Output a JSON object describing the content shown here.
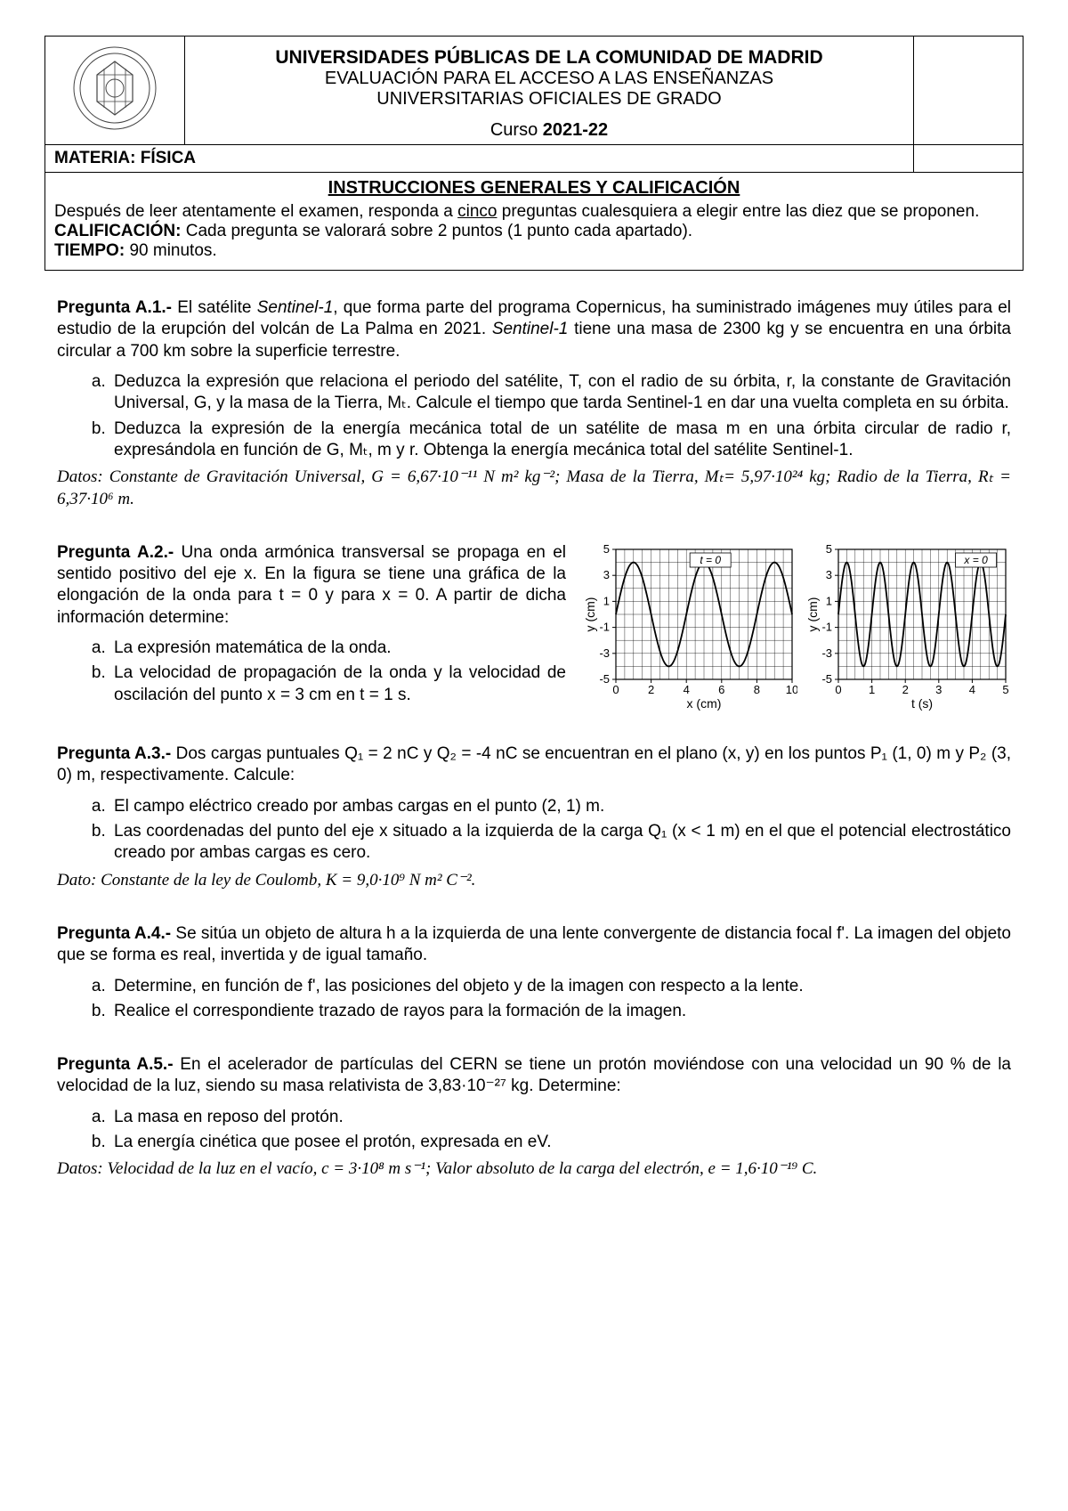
{
  "header": {
    "line1": "UNIVERSIDADES PÚBLICAS DE LA COMUNIDAD DE MADRID",
    "line2": "EVALUACIÓN PARA EL ACCESO A LAS ENSEÑANZAS",
    "line3": "UNIVERSITARIAS OFICIALES DE GRADO",
    "curso_label": "Curso ",
    "curso_value": "2021-22",
    "materia": "MATERIA: FÍSICA"
  },
  "instructions": {
    "title": "INSTRUCCIONES GENERALES Y CALIFICACIÓN",
    "body_pre": "Después de leer atentamente el examen, responda a ",
    "body_u": "cinco",
    "body_post": " preguntas cualesquiera a elegir entre las diez que se proponen.",
    "calif_label": "CALIFICACIÓN:",
    "calif_text": " Cada pregunta se valorará sobre 2 puntos (1 punto cada apartado).",
    "tiempo_label": "TIEMPO:",
    "tiempo_text": " 90 minutos."
  },
  "q1": {
    "label": "Pregunta A.1.-",
    "text_a": " El satélite ",
    "sat": "Sentinel-1",
    "text_b": ", que forma parte del programa Copernicus, ha suministrado imágenes muy útiles para el estudio de la erupción del volcán de La Palma en 2021. ",
    "text_c": " tiene una masa de 2300 kg y se encuentra en una órbita circular a 700 km sobre la superficie terrestre.",
    "a": "Deduzca la expresión que relaciona el periodo del satélite, T, con el radio de su órbita, r, la constante de Gravitación Universal, G, y la masa de la Tierra, Mₜ. Calcule el tiempo que tarda Sentinel-1 en dar una vuelta completa en su órbita.",
    "b": "Deduzca la expresión de la energía mecánica total de un satélite de masa m en una órbita circular de radio r, expresándola en función de G, Mₜ, m y r. Obtenga la energía mecánica total del satélite Sentinel-1.",
    "datos": "Datos: Constante de Gravitación Universal, G = 6,67·10⁻¹¹ N m² kg⁻²; Masa de la Tierra, Mₜ= 5,97·10²⁴ kg; Radio de la Tierra, Rₜ = 6,37·10⁶ m."
  },
  "q2": {
    "label": "Pregunta A.2.-",
    "text": " Una onda armónica transversal se propaga en el sentido positivo del eje x. En la figura se tiene una gráfica de la elongación de la onda para t = 0 y para x = 0. A partir de dicha información determine:",
    "a": "La expresión matemática de la onda.",
    "b": "La velocidad de propagación de la onda y la velocidad de oscilación del punto x = 3 cm en t = 1 s.",
    "chart1": {
      "type": "line",
      "xlabel": "x (cm)",
      "ylabel": "y (cm)",
      "annotation": "t = 0",
      "xlim": [
        0,
        10
      ],
      "ylim": [
        -5,
        5
      ],
      "xticks": [
        0,
        2,
        4,
        6,
        8,
        10
      ],
      "yticks": [
        -5,
        -3,
        -1,
        1,
        3,
        5
      ],
      "amplitude": 4,
      "wavelength": 4,
      "phase_at_0": 0,
      "line_color": "#000000",
      "grid_color": "#000000",
      "background": "#ffffff"
    },
    "chart2": {
      "type": "line",
      "xlabel": "t (s)",
      "ylabel": "y (cm)",
      "annotation": "x = 0",
      "xlim": [
        0,
        5
      ],
      "ylim": [
        -5,
        5
      ],
      "xticks": [
        0,
        1,
        2,
        3,
        4,
        5
      ],
      "yticks": [
        -5,
        -3,
        -1,
        1,
        3,
        5
      ],
      "amplitude": 4,
      "period": 1,
      "phase_at_0": 0,
      "line_color": "#000000",
      "grid_color": "#000000",
      "background": "#ffffff"
    }
  },
  "q3": {
    "label": "Pregunta A.3.-",
    "text": " Dos cargas puntuales Q₁ = 2 nC y Q₂ = -4 nC se encuentran en el plano (x, y) en los puntos P₁ (1, 0) m y P₂ (3, 0) m, respectivamente. Calcule:",
    "a": "El campo eléctrico creado por ambas cargas en el punto (2, 1) m.",
    "b": "Las coordenadas del punto del eje x situado a la izquierda de la carga Q₁ (x < 1 m) en el que el potencial electrostático creado por ambas cargas es cero.",
    "datos": "Dato: Constante de la ley de Coulomb, K = 9,0·10⁹ N m² C⁻²."
  },
  "q4": {
    "label": "Pregunta A.4.-",
    "text": " Se sitúa un objeto de altura h a la izquierda de una lente convergente de distancia focal f'. La imagen del objeto que se forma es real, invertida y de igual tamaño.",
    "a": "Determine, en función de f', las posiciones del objeto y de la imagen con respecto a la lente.",
    "b": "Realice el correspondiente trazado de rayos para la formación de la imagen."
  },
  "q5": {
    "label": "Pregunta A.5.-",
    "text": " En el acelerador de partículas del CERN se tiene un protón moviéndose con una velocidad un 90 % de la velocidad de la luz, siendo su masa relativista de 3,83·10⁻²⁷ kg. Determine:",
    "a": "La masa en reposo del protón.",
    "b": "La energía cinética que posee el protón, expresada en eV.",
    "datos": "Datos: Velocidad de la luz en el vacío, c = 3·10⁸ m s⁻¹; Valor absoluto de la carga del electrón, e = 1,6·10⁻¹⁹ C."
  }
}
